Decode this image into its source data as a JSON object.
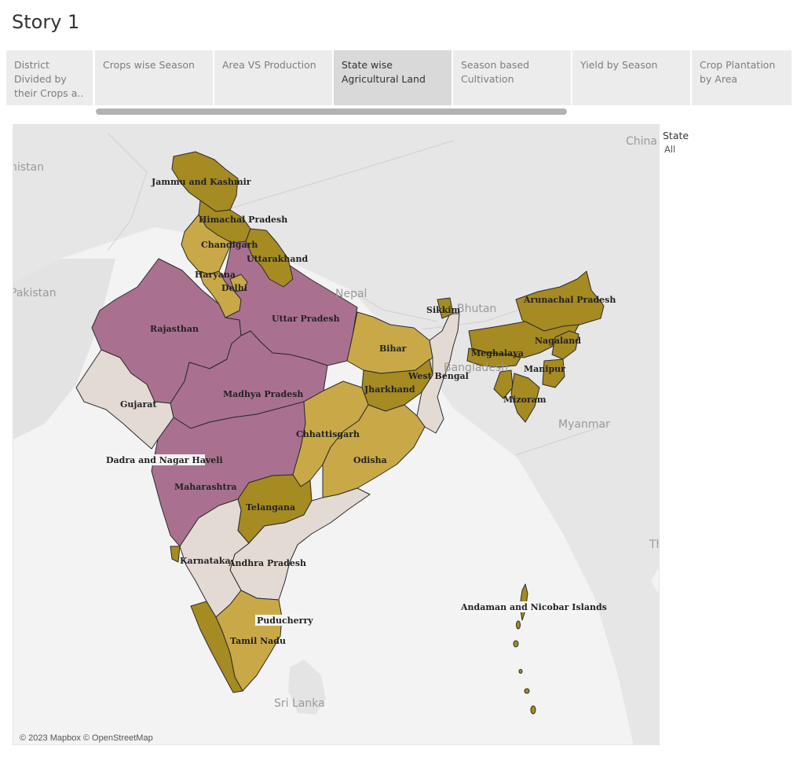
{
  "story": {
    "title": "Story 1"
  },
  "tabs": [
    {
      "label": "District Divided by their Crops a..",
      "active": false
    },
    {
      "label": "Crops wise Season",
      "active": false
    },
    {
      "label": "Area VS Production",
      "active": false
    },
    {
      "label": "State wise Agricultural Land",
      "active": true
    },
    {
      "label": "Season based Cultivation",
      "active": false
    },
    {
      "label": "Yield by Season",
      "active": false
    },
    {
      "label": "Crop Plantation by Area",
      "active": false
    }
  ],
  "legend": {
    "title": "State",
    "value": "All"
  },
  "colors": {
    "purple": "#a9718f",
    "dark_gold": "#a68a22",
    "light_gold": "#c9a947",
    "beige": "#e3dad4",
    "land": "#e3e3e3",
    "water": "#f3f3f3"
  },
  "map": {
    "countries": {
      "china": "China",
      "afghanistan": "nistan",
      "pakistan": "Pakistan",
      "nepal": "Nepal",
      "bhutan": "Bhutan",
      "bangladesh": "Bangladesh",
      "myanmar": "Myanmar",
      "sri_lanka": "Sri Lanka",
      "thailand": "Th"
    },
    "states": {
      "jammu_kashmir": "Jammu and Kashmir",
      "himachal": "Himachal Pradesh",
      "chandigarh": "Chandigarh",
      "uttarakhand": "Uttarakhand",
      "haryana": "Haryana",
      "delhi": "Delhi",
      "rajasthan": "Rajasthan",
      "uttar_pradesh": "Uttar Pradesh",
      "bihar": "Bihar",
      "sikkim": "Sikkim",
      "arunachal": "Arunachal Pradesh",
      "nagaland": "Nagaland",
      "meghalaya": "Meghalaya",
      "manipur": "Manipur",
      "mizoram": "Mizoram",
      "west_bengal": "West Bengal",
      "jharkhand": "Jharkhand",
      "gujarat": "Gujarat",
      "madhya_pradesh": "Madhya Pradesh",
      "chhattisgarh": "Chhattisgarh",
      "odisha": "Odisha",
      "dadra": "Dadra and Nagar Haveli",
      "maharashtra": "Maharashtra",
      "telangana": "Telangana",
      "karnataka": "Karnataka",
      "andhra": "Andhra Pradesh",
      "andaman": "Andaman and Nicobar Islands",
      "puducherry": "Puducherry",
      "tamil_nadu": "Tamil Nadu"
    },
    "attribution": "© 2023 Mapbox © OpenStreetMap"
  }
}
